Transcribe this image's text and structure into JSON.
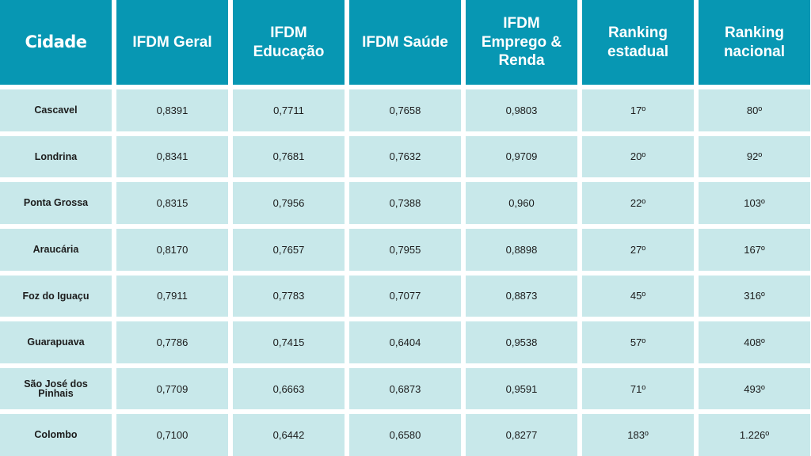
{
  "table": {
    "headers": [
      "Cidade",
      "IFDM Geral",
      "IFDM Educação",
      "IFDM Saúde",
      "IFDM Emprego & Renda",
      "Ranking estadual",
      "Ranking nacional"
    ],
    "rows": [
      [
        "Cascavel",
        "0,8391",
        "0,7711",
        "0,7658",
        "0,9803",
        "17º",
        "80º"
      ],
      [
        "Londrina",
        "0,8341",
        "0,7681",
        "0,7632",
        "0,9709",
        "20º",
        "92º"
      ],
      [
        "Ponta Grossa",
        "0,8315",
        "0,7956",
        "0,7388",
        "0,960",
        "22º",
        "103º"
      ],
      [
        "Araucária",
        "0,8170",
        "0,7657",
        "0,7955",
        "0,8898",
        "27º",
        "167º"
      ],
      [
        "Foz do Iguaçu",
        "0,7911",
        "0,7783",
        "0,7077",
        "0,8873",
        "45º",
        "316º"
      ],
      [
        "Guarapuava",
        "0,7786",
        "0,7415",
        "0,6404",
        "0,9538",
        "57º",
        "408º"
      ],
      [
        "São José dos Pinhais",
        "0,7709",
        "0,6663",
        "0,6873",
        "0,9591",
        "71º",
        "493º"
      ],
      [
        "Colombo",
        "0,7100",
        "0,6442",
        "0,6580",
        "0,8277",
        "183º",
        "1.226º"
      ]
    ]
  },
  "colors": {
    "header_bg": "#0797b3",
    "cell_bg": "#c8e8ea",
    "gap": "#ffffff"
  }
}
